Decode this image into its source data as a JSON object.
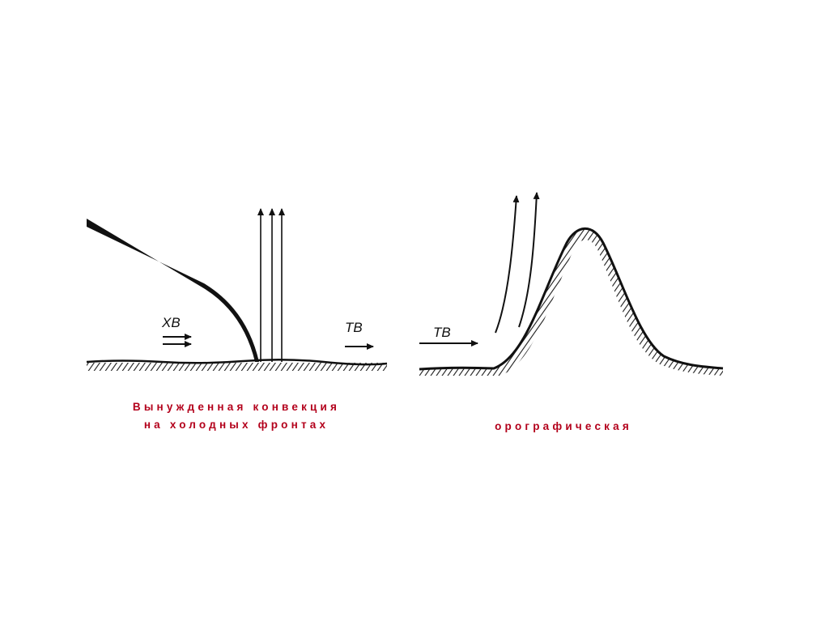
{
  "diagrams": [
    {
      "labels": {
        "cold_air": "ХВ",
        "warm_air": "ТВ"
      },
      "caption_line1": "Вынужденная конвекция",
      "caption_line2": "на холодных фронтах"
    },
    {
      "labels": {
        "warm_air": "ТВ"
      },
      "caption": "орографическая"
    }
  ],
  "colors": {
    "caption": "#b3001b",
    "ink": "#111111"
  }
}
